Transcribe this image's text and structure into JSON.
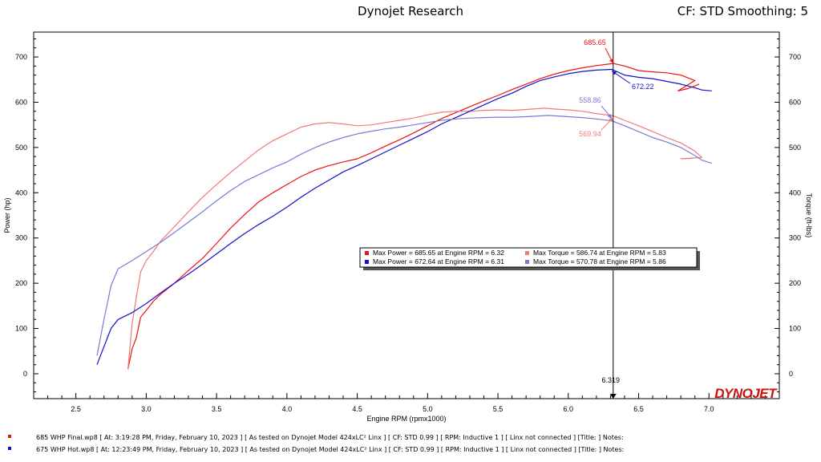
{
  "header": {
    "title": "Dynojet Research",
    "cf_label": "CF: STD Smoothing: 5"
  },
  "colors": {
    "run1_power": "#ee1111",
    "run1_torque": "#ee7a7a",
    "run2_power": "#1111cc",
    "run2_torque": "#7a7ad6",
    "cursor": "#000000"
  },
  "logo": {
    "text": "DYNOJET",
    "icon": "dynojet-logo"
  },
  "cursor": {
    "label": "6.319"
  },
  "annotations": {
    "run1_power_max": "685.65",
    "run2_power_max": "672.22",
    "run2_torque_cursor": "558.86",
    "run1_torque_cursor": "569.94"
  },
  "legend": [
    {
      "text": "Max Power = 685.65 at Engine RPM = 6.32",
      "color": "#ee1111"
    },
    {
      "text": "Max Torque = 586.74 at Engine RPM = 5.83",
      "color": "#ee7a7a"
    },
    {
      "text": "Max Power = 672.64 at Engine RPM = 6.31",
      "color": "#1111cc"
    },
    {
      "text": "Max Torque = 570.78 at Engine RPM = 5.86",
      "color": "#7a7ad6"
    }
  ],
  "runs": [
    {
      "color": "#ee1111",
      "text": "685 WHP Final.wp8  [  At:  3:19:28 PM, Friday, February 10, 2023  ]  [  As tested on Dynojet Model 424xLC²  Linx  ]  [  CF:  STD 0.99  ]  [  RPM:  Inductive 1  ]  [  Linx not connected  ]  [Title:  ]   Notes:"
    },
    {
      "color": "#1111cc",
      "text": "675 WHP Hot.wp8  [  At:  12:23:49 PM, Friday, February 10, 2023  ]  [  As tested on Dynojet Model 424xLC²  Linx  ]  [  CF:  STD 0.99  ]  [  RPM:  Inductive 1  ]  [  Linx not connected  ]  [Title:  ]   Notes:"
    }
  ],
  "chart_data": {
    "type": "line",
    "xlabel": "Engine RPM (rpmx1000)",
    "ylabel": "Power (hp)",
    "y2label": "Torque (ft-lbs)",
    "xlim": [
      2.2,
      7.5
    ],
    "ylim": [
      -55,
      755
    ],
    "xticks": [
      "2.5",
      "3.0",
      "3.5",
      "4.0",
      "4.5",
      "5.0",
      "5.5",
      "6.0",
      "6.5",
      "7.0"
    ],
    "yticks": [
      "0",
      "100",
      "200",
      "300",
      "400",
      "500",
      "600",
      "700"
    ],
    "cursor_x": 6.319,
    "series": [
      {
        "name": "685 WHP Final - Power",
        "color": "#ee1111",
        "points": [
          [
            2.87,
            10
          ],
          [
            2.9,
            55
          ],
          [
            2.93,
            80
          ],
          [
            2.96,
            125
          ],
          [
            3.0,
            140
          ],
          [
            3.05,
            160
          ],
          [
            3.1,
            175
          ],
          [
            3.2,
            200
          ],
          [
            3.3,
            228
          ],
          [
            3.4,
            255
          ],
          [
            3.5,
            288
          ],
          [
            3.6,
            322
          ],
          [
            3.7,
            352
          ],
          [
            3.8,
            380
          ],
          [
            3.9,
            400
          ],
          [
            4.0,
            418
          ],
          [
            4.1,
            436
          ],
          [
            4.2,
            450
          ],
          [
            4.3,
            460
          ],
          [
            4.4,
            468
          ],
          [
            4.5,
            475
          ],
          [
            4.6,
            488
          ],
          [
            4.7,
            503
          ],
          [
            4.8,
            517
          ],
          [
            4.9,
            532
          ],
          [
            5.0,
            548
          ],
          [
            5.1,
            564
          ],
          [
            5.2,
            577
          ],
          [
            5.3,
            590
          ],
          [
            5.4,
            603
          ],
          [
            5.5,
            615
          ],
          [
            5.6,
            628
          ],
          [
            5.7,
            640
          ],
          [
            5.8,
            652
          ],
          [
            5.9,
            662
          ],
          [
            6.0,
            670
          ],
          [
            6.1,
            676
          ],
          [
            6.2,
            681
          ],
          [
            6.32,
            685.65
          ],
          [
            6.4,
            680
          ],
          [
            6.5,
            670
          ],
          [
            6.6,
            667
          ],
          [
            6.7,
            665
          ],
          [
            6.8,
            660
          ],
          [
            6.9,
            648
          ],
          [
            6.78,
            625
          ],
          [
            6.85,
            630
          ],
          [
            6.93,
            640
          ]
        ]
      },
      {
        "name": "685 WHP Final - Torque",
        "color": "#ee7a7a",
        "points": [
          [
            2.87,
            10
          ],
          [
            2.9,
            110
          ],
          [
            2.93,
            170
          ],
          [
            2.96,
            225
          ],
          [
            3.0,
            250
          ],
          [
            3.05,
            270
          ],
          [
            3.1,
            292
          ],
          [
            3.2,
            325
          ],
          [
            3.3,
            358
          ],
          [
            3.4,
            390
          ],
          [
            3.5,
            418
          ],
          [
            3.6,
            445
          ],
          [
            3.7,
            470
          ],
          [
            3.8,
            495
          ],
          [
            3.9,
            515
          ],
          [
            4.0,
            530
          ],
          [
            4.1,
            545
          ],
          [
            4.2,
            552
          ],
          [
            4.3,
            555
          ],
          [
            4.4,
            552
          ],
          [
            4.5,
            548
          ],
          [
            4.6,
            550
          ],
          [
            4.7,
            555
          ],
          [
            4.8,
            560
          ],
          [
            4.9,
            565
          ],
          [
            5.0,
            572
          ],
          [
            5.1,
            578
          ],
          [
            5.2,
            580
          ],
          [
            5.3,
            580
          ],
          [
            5.4,
            582
          ],
          [
            5.5,
            583
          ],
          [
            5.6,
            582
          ],
          [
            5.7,
            584
          ],
          [
            5.83,
            586.74
          ],
          [
            5.9,
            585
          ],
          [
            6.0,
            583
          ],
          [
            6.1,
            580
          ],
          [
            6.2,
            575
          ],
          [
            6.32,
            569.94
          ],
          [
            6.4,
            560
          ],
          [
            6.5,
            548
          ],
          [
            6.6,
            535
          ],
          [
            6.7,
            522
          ],
          [
            6.8,
            510
          ],
          [
            6.9,
            492
          ],
          [
            6.95,
            478
          ],
          [
            6.8,
            475
          ],
          [
            6.88,
            476
          ]
        ]
      },
      {
        "name": "675 WHP Hot - Power",
        "color": "#1111cc",
        "points": [
          [
            2.65,
            20
          ],
          [
            2.7,
            60
          ],
          [
            2.75,
            100
          ],
          [
            2.8,
            120
          ],
          [
            2.9,
            135
          ],
          [
            3.0,
            155
          ],
          [
            3.1,
            178
          ],
          [
            3.2,
            200
          ],
          [
            3.3,
            220
          ],
          [
            3.4,
            242
          ],
          [
            3.5,
            265
          ],
          [
            3.6,
            288
          ],
          [
            3.7,
            310
          ],
          [
            3.8,
            330
          ],
          [
            3.9,
            348
          ],
          [
            4.0,
            368
          ],
          [
            4.1,
            390
          ],
          [
            4.2,
            410
          ],
          [
            4.3,
            428
          ],
          [
            4.4,
            446
          ],
          [
            4.5,
            460
          ],
          [
            4.6,
            475
          ],
          [
            4.7,
            490
          ],
          [
            4.8,
            505
          ],
          [
            4.9,
            520
          ],
          [
            5.0,
            535
          ],
          [
            5.1,
            552
          ],
          [
            5.2,
            566
          ],
          [
            5.3,
            580
          ],
          [
            5.4,
            594
          ],
          [
            5.5,
            608
          ],
          [
            5.6,
            620
          ],
          [
            5.7,
            635
          ],
          [
            5.8,
            648
          ],
          [
            5.9,
            656
          ],
          [
            6.0,
            663
          ],
          [
            6.1,
            668
          ],
          [
            6.2,
            671
          ],
          [
            6.31,
            672.64
          ],
          [
            6.4,
            660
          ],
          [
            6.5,
            655
          ],
          [
            6.6,
            652
          ],
          [
            6.7,
            646
          ],
          [
            6.8,
            640
          ],
          [
            6.9,
            632
          ],
          [
            6.95,
            627
          ],
          [
            7.02,
            625
          ]
        ]
      },
      {
        "name": "675 WHP Hot - Torque",
        "color": "#7a7ad6",
        "points": [
          [
            2.65,
            40
          ],
          [
            2.7,
            120
          ],
          [
            2.75,
            195
          ],
          [
            2.8,
            232
          ],
          [
            2.9,
            250
          ],
          [
            3.0,
            270
          ],
          [
            3.1,
            290
          ],
          [
            3.2,
            312
          ],
          [
            3.3,
            335
          ],
          [
            3.4,
            358
          ],
          [
            3.5,
            382
          ],
          [
            3.6,
            405
          ],
          [
            3.7,
            425
          ],
          [
            3.8,
            440
          ],
          [
            3.9,
            455
          ],
          [
            4.0,
            468
          ],
          [
            4.1,
            485
          ],
          [
            4.2,
            500
          ],
          [
            4.3,
            512
          ],
          [
            4.4,
            522
          ],
          [
            4.5,
            530
          ],
          [
            4.6,
            536
          ],
          [
            4.7,
            541
          ],
          [
            4.8,
            545
          ],
          [
            4.9,
            550
          ],
          [
            5.0,
            555
          ],
          [
            5.1,
            560
          ],
          [
            5.2,
            563
          ],
          [
            5.3,
            565
          ],
          [
            5.4,
            566
          ],
          [
            5.5,
            567
          ],
          [
            5.6,
            567
          ],
          [
            5.7,
            568
          ],
          [
            5.86,
            570.78
          ],
          [
            5.9,
            570
          ],
          [
            6.0,
            568
          ],
          [
            6.1,
            566
          ],
          [
            6.2,
            563
          ],
          [
            6.31,
            558.86
          ],
          [
            6.4,
            548
          ],
          [
            6.5,
            535
          ],
          [
            6.6,
            522
          ],
          [
            6.7,
            512
          ],
          [
            6.8,
            500
          ],
          [
            6.9,
            482
          ],
          [
            6.95,
            472
          ],
          [
            7.02,
            465
          ]
        ]
      }
    ]
  }
}
